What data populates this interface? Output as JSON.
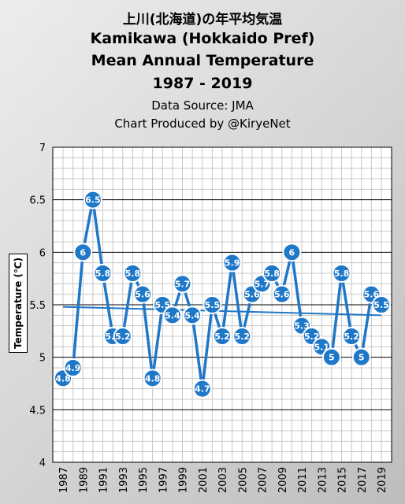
{
  "header": {
    "title_jp": "上川(北海道)の年平均気温",
    "title_line1": "Kamikawa (Hokkaido Pref)",
    "title_line2": "Mean Annual Temperature",
    "title_line3": "1987 - 2019",
    "subtitle_line1": "Data Source: JMA",
    "subtitle_line2": "Chart Produced by @KiryeNet"
  },
  "chart_data": {
    "type": "line",
    "title": "Kamikawa (Hokkaido Pref) Mean Annual Temperature 1987 - 2019",
    "xlabel": "",
    "ylabel": "Temperature (℃)",
    "x": [
      1987,
      1988,
      1989,
      1990,
      1991,
      1992,
      1993,
      1994,
      1995,
      1996,
      1997,
      1998,
      1999,
      2000,
      2001,
      2002,
      2003,
      2004,
      2005,
      2006,
      2007,
      2008,
      2009,
      2010,
      2011,
      2012,
      2013,
      2014,
      2015,
      2016,
      2017,
      2018,
      2019
    ],
    "series": [
      {
        "values": [
          4.8,
          4.9,
          6,
          6.5,
          5.8,
          5.2,
          5.2,
          5.8,
          5.6,
          4.8,
          5.5,
          5.4,
          5.7,
          5.4,
          4.7,
          5.5,
          5.2,
          5.9,
          5.2,
          5.6,
          5.7,
          5.8,
          5.6,
          6,
          5.3,
          5.2,
          5.1,
          5,
          5.8,
          5.2,
          5,
          5.6,
          5.5
        ],
        "color": "#1f77c8",
        "trendline": {
          "start": 5.48,
          "end": 5.4
        }
      }
    ],
    "x_tick_labels": [
      "1987",
      "1989",
      "1991",
      "1993",
      "1995",
      "1997",
      "1999",
      "2001",
      "2003",
      "2005",
      "2007",
      "2009",
      "2011",
      "2013",
      "2015",
      "2017",
      "2019"
    ],
    "y_tick_labels": [
      "4",
      "4.5",
      "5",
      "5.5",
      "6",
      "6.5",
      "7"
    ],
    "ylim": [
      4,
      7
    ],
    "grid": true,
    "legend": "none",
    "colors": {
      "line": "#1f77c8",
      "marker_fill": "#1f77c8",
      "marker_stroke": "#ffffff",
      "trend": "#1f77c8",
      "plot_bg": "#ffffff"
    }
  }
}
